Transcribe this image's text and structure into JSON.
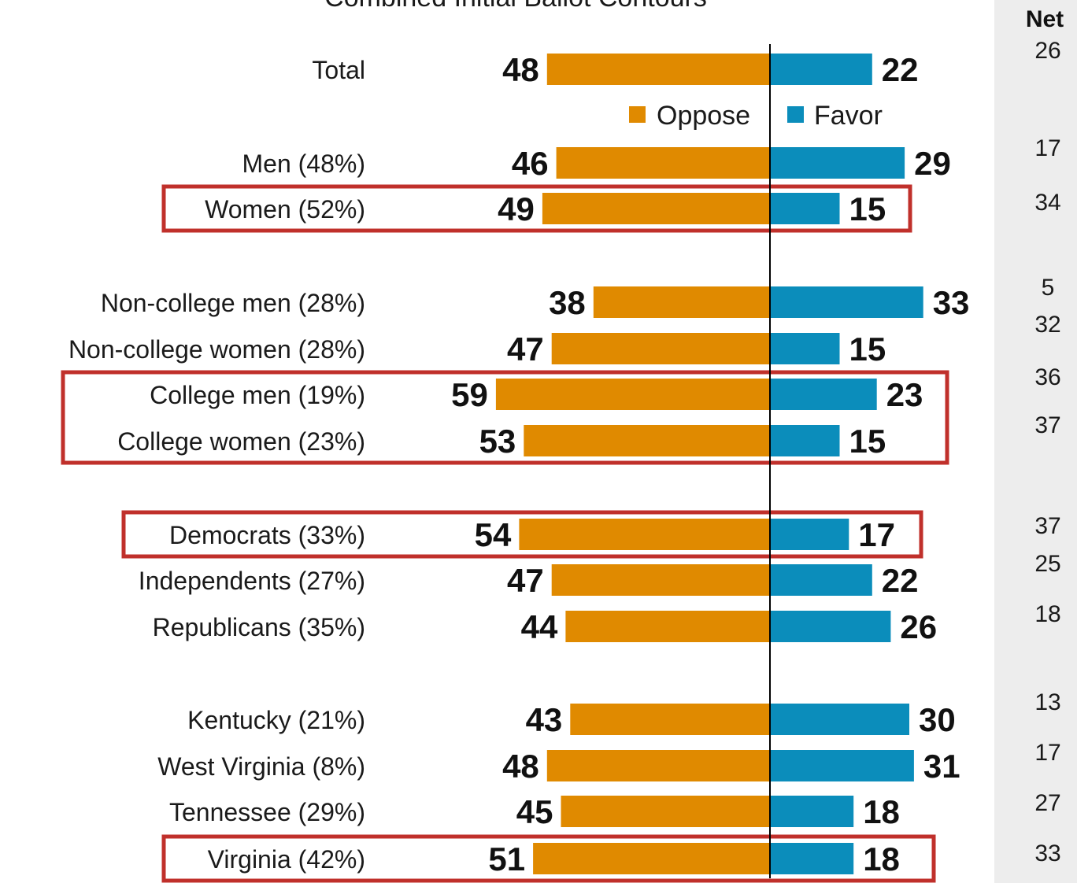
{
  "chart_data": {
    "type": "bar",
    "title": "Combined Initial Ballot Contours",
    "net_header": "Net",
    "series": [
      {
        "name": "Oppose",
        "color": "#E08A00"
      },
      {
        "name": "Favor",
        "color": "#0B8DBB"
      }
    ],
    "categories": [
      "Total",
      "Men (48%)",
      "Women (52%)",
      "Non-college men (28%)",
      "Non-college women (28%)",
      "College men (19%)",
      "College women (23%)",
      "Democrats (33%)",
      "Independents (27%)",
      "Republicans (35%)",
      "Kentucky (21%)",
      "West Virginia (8%)",
      "Tennessee (29%)",
      "Virginia (42%)"
    ],
    "oppose": [
      48,
      46,
      49,
      38,
      47,
      59,
      53,
      54,
      47,
      44,
      43,
      48,
      45,
      51
    ],
    "favor": [
      22,
      29,
      15,
      33,
      15,
      23,
      15,
      17,
      22,
      26,
      30,
      31,
      18,
      18
    ],
    "net": [
      26,
      17,
      34,
      5,
      32,
      36,
      37,
      37,
      25,
      18,
      13,
      17,
      27,
      33
    ],
    "highlighted": [
      "Women (52%)",
      "College men (19%)",
      "College women (23%)",
      "Democrats (33%)",
      "Virginia (42%)"
    ],
    "highlight_color": "#C0302B"
  }
}
